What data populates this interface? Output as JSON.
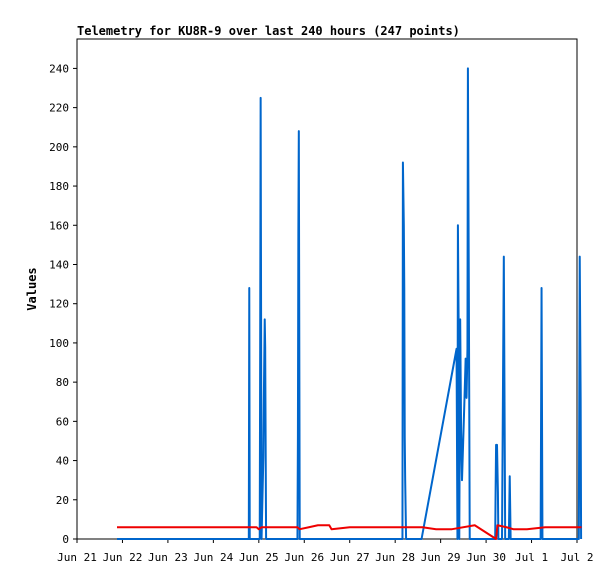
{
  "chart_data": {
    "type": "line",
    "title": "Telemetry for KU8R-9 over last 240 hours (247 points)",
    "xlabel": "",
    "ylabel": "Values",
    "x_tick_labels": [
      "Jun 21",
      "Jun 22",
      "Jun 23",
      "Jun 24",
      "Jun 25",
      "Jun 26",
      "Jun 27",
      "Jun 28",
      "Jun 29",
      "Jun 30",
      "Jul 1",
      "Jul 2"
    ],
    "xlim": [
      0,
      11
    ],
    "ylim": [
      0,
      255
    ],
    "y_ticks": [
      0,
      20,
      40,
      60,
      80,
      100,
      120,
      140,
      160,
      180,
      200,
      220,
      240
    ],
    "x_unit": "days after Jun 21 00:00",
    "grid": false,
    "legend": "none",
    "series": [
      {
        "color": "#0066cc",
        "points": [
          [
            0.88,
            0
          ],
          [
            3.78,
            0
          ],
          [
            3.79,
            128
          ],
          [
            3.8,
            0
          ],
          [
            4.02,
            0
          ],
          [
            4.03,
            97
          ],
          [
            4.04,
            225
          ],
          [
            4.06,
            0
          ],
          [
            4.1,
            42
          ],
          [
            4.11,
            70
          ],
          [
            4.13,
            112
          ],
          [
            4.14,
            98
          ],
          [
            4.16,
            0
          ],
          [
            4.85,
            0
          ],
          [
            4.86,
            52
          ],
          [
            4.87,
            156
          ],
          [
            4.88,
            208
          ],
          [
            4.9,
            0
          ],
          [
            7.16,
            0
          ],
          [
            7.17,
            192
          ],
          [
            7.19,
            160
          ],
          [
            7.2,
            128
          ],
          [
            7.21,
            52
          ],
          [
            7.22,
            30
          ],
          [
            7.24,
            0
          ],
          [
            7.58,
            0
          ],
          [
            8.35,
            97
          ],
          [
            8.37,
            0
          ],
          [
            8.38,
            160
          ],
          [
            8.4,
            97
          ],
          [
            8.41,
            0
          ],
          [
            8.43,
            112
          ],
          [
            8.45,
            55
          ],
          [
            8.47,
            30
          ],
          [
            8.52,
            68
          ],
          [
            8.55,
            92
          ],
          [
            8.57,
            72
          ],
          [
            8.59,
            97
          ],
          [
            8.6,
            240
          ],
          [
            8.62,
            128
          ],
          [
            8.64,
            0
          ],
          [
            8.72,
            0
          ],
          [
            8.74,
            0
          ],
          [
            9.2,
            0
          ],
          [
            9.21,
            26
          ],
          [
            9.22,
            48
          ],
          [
            9.24,
            48
          ],
          [
            9.26,
            24
          ],
          [
            9.27,
            0
          ],
          [
            9.35,
            0
          ],
          [
            9.39,
            144
          ],
          [
            9.42,
            0
          ],
          [
            9.5,
            0
          ],
          [
            9.52,
            32
          ],
          [
            9.54,
            0
          ],
          [
            10.2,
            0
          ],
          [
            10.22,
            128
          ],
          [
            10.24,
            0
          ],
          [
            11.04,
            0
          ],
          [
            11.06,
            144
          ],
          [
            11.08,
            72
          ],
          [
            11.09,
            0
          ]
        ]
      },
      {
        "color": "#ee0000",
        "points": [
          [
            0.88,
            6
          ],
          [
            3.95,
            6
          ],
          [
            4.0,
            5
          ],
          [
            4.06,
            6
          ],
          [
            4.85,
            6
          ],
          [
            4.9,
            5
          ],
          [
            5.1,
            6
          ],
          [
            5.3,
            7
          ],
          [
            5.55,
            7
          ],
          [
            5.6,
            5
          ],
          [
            6.0,
            6
          ],
          [
            7.22,
            6
          ],
          [
            7.6,
            6
          ],
          [
            7.9,
            5
          ],
          [
            8.25,
            5
          ],
          [
            8.75,
            7
          ],
          [
            9.22,
            0
          ],
          [
            9.25,
            7
          ],
          [
            9.45,
            6
          ],
          [
            9.6,
            5
          ],
          [
            9.9,
            5
          ],
          [
            10.3,
            6
          ],
          [
            11.1,
            6
          ]
        ]
      }
    ]
  }
}
